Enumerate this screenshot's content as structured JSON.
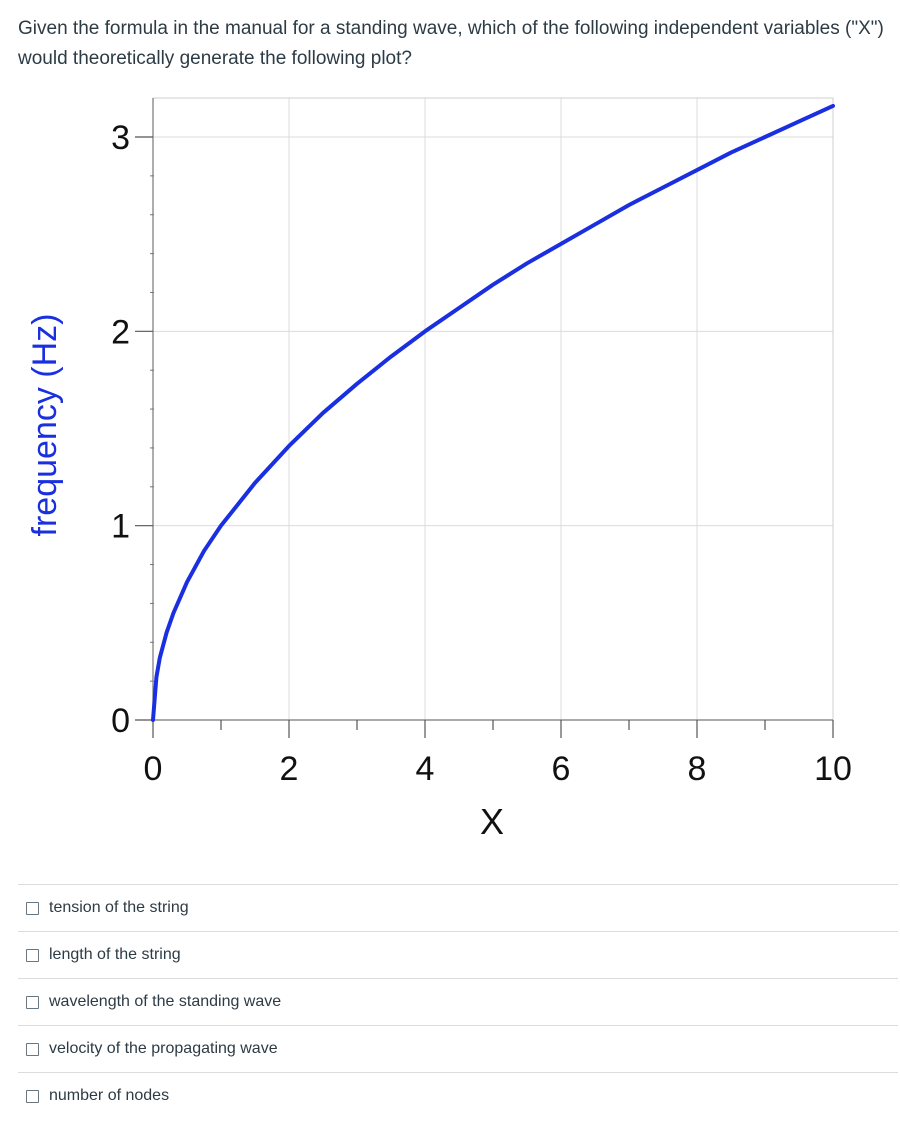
{
  "question": {
    "text": "Given the formula in the manual for a standing wave, which of the following independent variables (\"X\") would theoretically generate the following plot?"
  },
  "chart_data": {
    "type": "line",
    "xlabel": "X",
    "ylabel": "frequency (Hz)",
    "xlim": [
      0,
      10
    ],
    "ylim": [
      0,
      3.2
    ],
    "xticks": [
      "0",
      "2",
      "4",
      "6",
      "8",
      "10"
    ],
    "yticks": [
      "0",
      "1",
      "2",
      "3"
    ],
    "grid": true,
    "series_color": "#1a2fe0",
    "ylabel_color": "#1a2fe0",
    "series": [
      {
        "x": [
          0,
          0.05,
          0.1,
          0.2,
          0.3,
          0.5,
          0.75,
          1,
          1.5,
          2,
          2.5,
          3,
          3.5,
          4,
          4.5,
          5,
          5.5,
          6,
          6.5,
          7,
          7.5,
          8,
          8.5,
          9,
          9.5,
          10
        ],
        "y": [
          0.0,
          0.22,
          0.32,
          0.45,
          0.55,
          0.71,
          0.87,
          1.0,
          1.22,
          1.41,
          1.58,
          1.73,
          1.87,
          2.0,
          2.12,
          2.24,
          2.35,
          2.45,
          2.55,
          2.65,
          2.74,
          2.83,
          2.92,
          3.0,
          3.08,
          3.16
        ]
      }
    ]
  },
  "options": [
    {
      "label": "tension of the string"
    },
    {
      "label": "length of the string"
    },
    {
      "label": "wavelength of the standing wave"
    },
    {
      "label": "velocity of the propagating wave"
    },
    {
      "label": "number of nodes"
    }
  ]
}
